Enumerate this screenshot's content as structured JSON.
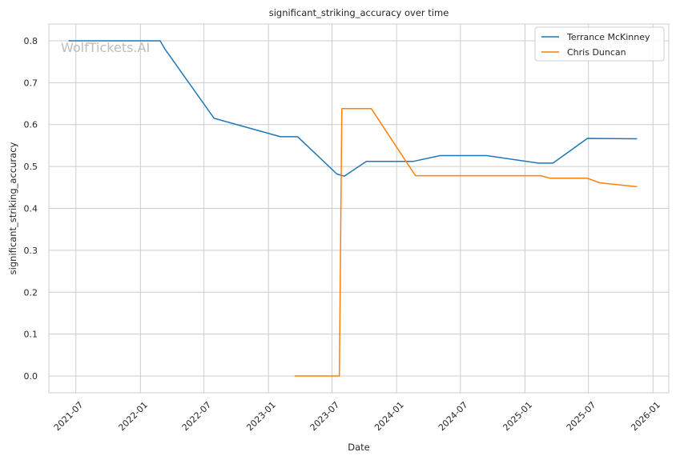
{
  "chart_data": {
    "type": "line",
    "title": "significant_striking_accuracy over time",
    "xlabel": "Date",
    "ylabel": "significant_striking_accuracy",
    "watermark": "WolfTickets.AI",
    "xlim": [
      "2021-04-15",
      "2026-02-15"
    ],
    "ylim": [
      -0.04,
      0.84
    ],
    "x_ticks": [
      "2021-07-01",
      "2022-01-01",
      "2022-07-01",
      "2023-01-01",
      "2023-07-01",
      "2024-01-01",
      "2024-07-01",
      "2025-01-01",
      "2025-07-01",
      "2026-01-01"
    ],
    "x_tick_labels": [
      "2021-07",
      "2022-01",
      "2022-07",
      "2023-01",
      "2023-07",
      "2024-01",
      "2024-07",
      "2025-01",
      "2025-07",
      "2026-01"
    ],
    "y_ticks": [
      0.0,
      0.1,
      0.2,
      0.3,
      0.4,
      0.5,
      0.6,
      0.7,
      0.8
    ],
    "y_tick_labels": [
      "0.0",
      "0.1",
      "0.2",
      "0.3",
      "0.4",
      "0.5",
      "0.6",
      "0.7",
      "0.8"
    ],
    "grid": true,
    "legend_position": "top-right",
    "series": [
      {
        "name": "Terrance McKinney",
        "color": "#1f77b4",
        "points": [
          {
            "x": "2021-06-12",
            "y": 0.8
          },
          {
            "x": "2022-02-26",
            "y": 0.8
          },
          {
            "x": "2022-03-12",
            "y": 0.78
          },
          {
            "x": "2022-07-30",
            "y": 0.615
          },
          {
            "x": "2023-02-04",
            "y": 0.571
          },
          {
            "x": "2023-03-25",
            "y": 0.571
          },
          {
            "x": "2023-07-15",
            "y": 0.482
          },
          {
            "x": "2023-08-05",
            "y": 0.477
          },
          {
            "x": "2023-10-07",
            "y": 0.512
          },
          {
            "x": "2024-02-17",
            "y": 0.512
          },
          {
            "x": "2024-05-04",
            "y": 0.526
          },
          {
            "x": "2024-09-14",
            "y": 0.526
          },
          {
            "x": "2025-02-08",
            "y": 0.508
          },
          {
            "x": "2025-03-22",
            "y": 0.508
          },
          {
            "x": "2025-06-28",
            "y": 0.567
          },
          {
            "x": "2025-11-15",
            "y": 0.566
          }
        ]
      },
      {
        "name": "Chris Duncan",
        "color": "#ff7f0e",
        "points": [
          {
            "x": "2023-03-18",
            "y": 0.0
          },
          {
            "x": "2023-07-22",
            "y": 0.0
          },
          {
            "x": "2023-07-29",
            "y": 0.638
          },
          {
            "x": "2023-10-21",
            "y": 0.638
          },
          {
            "x": "2024-02-24",
            "y": 0.478
          },
          {
            "x": "2025-02-15",
            "y": 0.478
          },
          {
            "x": "2025-03-15",
            "y": 0.472
          },
          {
            "x": "2025-06-28",
            "y": 0.472
          },
          {
            "x": "2025-08-02",
            "y": 0.461
          },
          {
            "x": "2025-11-15",
            "y": 0.452
          }
        ]
      }
    ]
  }
}
